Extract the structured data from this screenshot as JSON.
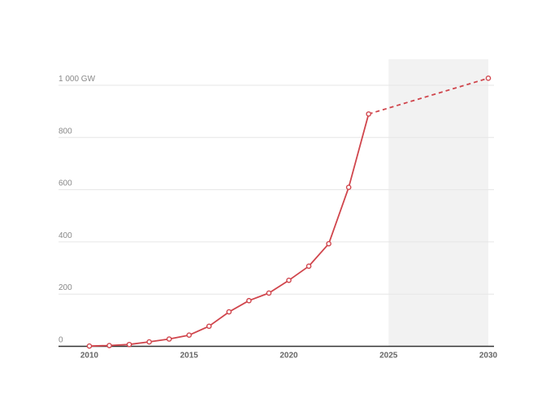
{
  "chart_data": {
    "type": "line",
    "title": "",
    "xlabel": "",
    "ylabel": "",
    "xlim": [
      2008.5,
      2030.5
    ],
    "ylim": [
      0,
      1100
    ],
    "grid": true,
    "legend": "none",
    "projection_band": [
      2025,
      2030
    ],
    "y_ticks": [
      {
        "value": 0,
        "label": "0"
      },
      {
        "value": 200,
        "label": "200"
      },
      {
        "value": 400,
        "label": "400"
      },
      {
        "value": 600,
        "label": "600"
      },
      {
        "value": 800,
        "label": "800"
      },
      {
        "value": 1000,
        "label": "1 000 GW"
      }
    ],
    "x_ticks": [
      {
        "value": 2010,
        "label": "2010"
      },
      {
        "value": 2015,
        "label": "2015"
      },
      {
        "value": 2020,
        "label": "2020"
      },
      {
        "value": 2025,
        "label": "2025"
      },
      {
        "value": 2030,
        "label": "2030"
      }
    ],
    "series": [
      {
        "style": "solid",
        "x": [
          2010,
          2011,
          2012,
          2013,
          2014,
          2015,
          2016,
          2017,
          2018,
          2019,
          2020,
          2021,
          2022,
          2023,
          2024
        ],
        "values": [
          1,
          3,
          7,
          17,
          28,
          43,
          77,
          132,
          175,
          204,
          253,
          307,
          393,
          609,
          890
        ]
      },
      {
        "style": "dashed",
        "x": [
          2024,
          2030
        ],
        "values": [
          890,
          1027
        ]
      }
    ],
    "colors": {
      "line": "#d0454c",
      "band": "#f2f2f2",
      "grid": "#e6e6e6",
      "axis": "#333333"
    }
  }
}
